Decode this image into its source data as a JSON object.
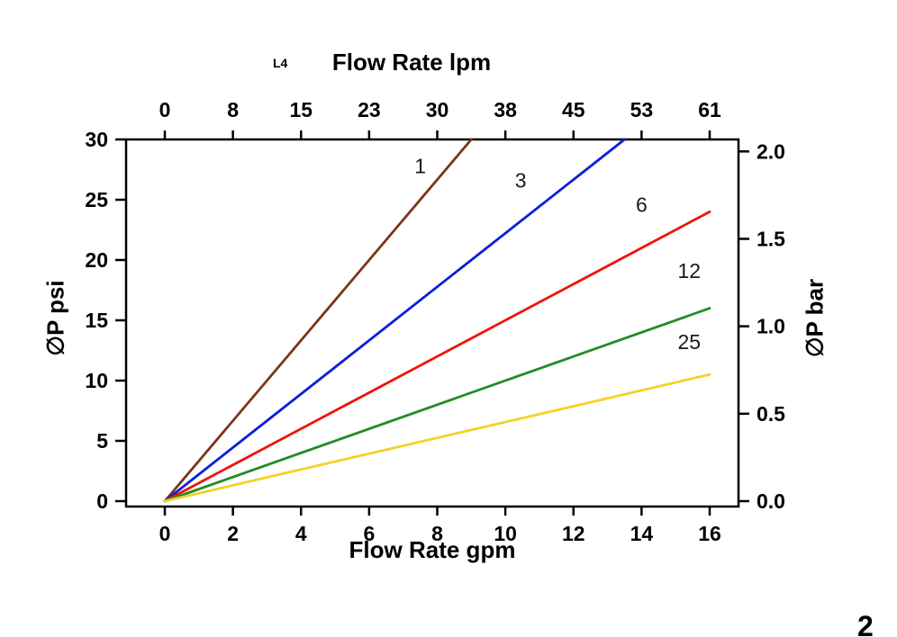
{
  "page": {
    "corner_note": "L4",
    "page_number": "2"
  },
  "chart_data": {
    "type": "line",
    "top_axis_title": "Flow Rate lpm",
    "bottom_axis_title": "Flow Rate gpm",
    "left_axis_title": "∅P psi",
    "right_axis_title": "∅P bar",
    "grid": false,
    "legend": "inline curve labels",
    "x_bottom": {
      "unit": "gpm",
      "ticks": [
        0,
        2,
        4,
        6,
        8,
        10,
        12,
        14,
        16
      ],
      "range": [
        0,
        16
      ]
    },
    "x_top": {
      "unit": "lpm",
      "labels": [
        "0",
        "8",
        "15",
        "23",
        "30",
        "38",
        "45",
        "53",
        "61"
      ],
      "range": [
        0,
        61
      ]
    },
    "y_left": {
      "unit": "psi",
      "ticks": [
        0,
        5,
        10,
        15,
        20,
        25,
        30
      ],
      "range": [
        0,
        30
      ]
    },
    "y_right": {
      "unit": "bar",
      "labels": [
        "0.0",
        "0.5",
        "1.0",
        "1.5",
        "2.0"
      ],
      "range": [
        0.0,
        2.0
      ]
    },
    "psi_per_bar": 14.503774,
    "series": [
      {
        "name": "1",
        "color": "#7d3418",
        "points_gpm_psi": [
          [
            0,
            0
          ],
          [
            9,
            30
          ]
        ],
        "label_pos": [
          7.5,
          27.2
        ]
      },
      {
        "name": "3",
        "color": "#0c1ed9",
        "points_gpm_psi": [
          [
            0,
            0
          ],
          [
            13.5,
            30
          ]
        ],
        "label_pos": [
          10.45,
          26.0
        ]
      },
      {
        "name": "6",
        "color": "#ee1507",
        "points_gpm_psi": [
          [
            0,
            0
          ],
          [
            16,
            24
          ]
        ],
        "label_pos": [
          14.0,
          24.0
        ]
      },
      {
        "name": "12",
        "color": "#238b28",
        "points_gpm_psi": [
          [
            0,
            0
          ],
          [
            16,
            16
          ]
        ],
        "label_pos": [
          15.4,
          18.5
        ]
      },
      {
        "name": "25",
        "color": "#f3d129",
        "points_gpm_psi": [
          [
            0,
            0
          ],
          [
            16,
            10.5
          ]
        ],
        "label_pos": [
          15.4,
          12.6
        ]
      }
    ]
  }
}
